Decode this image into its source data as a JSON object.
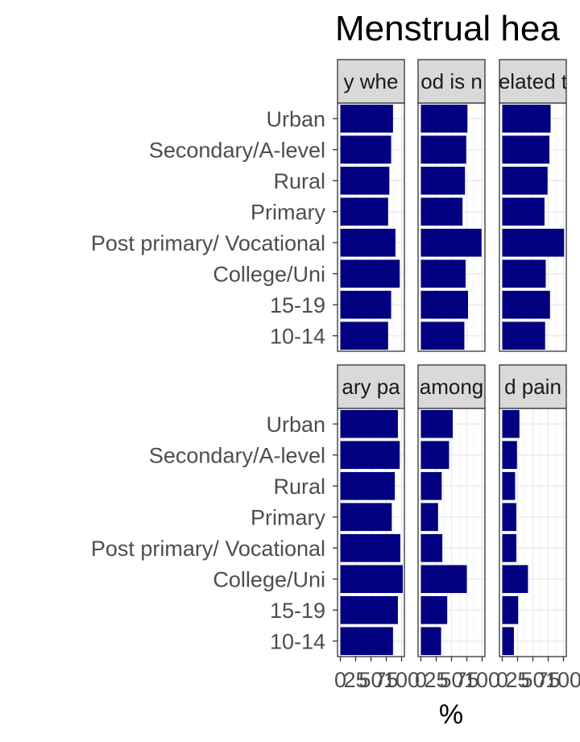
{
  "chart_data": {
    "type": "bar",
    "orientation": "horizontal",
    "title": "Menstrual hea",
    "xlabel": "%",
    "ylabel": "",
    "xlim": [
      0,
      100
    ],
    "x_ticks": [
      0,
      25,
      50,
      75,
      100
    ],
    "x_tick_labels": [
      "0",
      "25",
      "50",
      "75",
      "100"
    ],
    "categories": [
      "Urban",
      "Secondary/A-level",
      "Rural",
      "Primary",
      "Post primary/ Vocational",
      "College/Uni",
      "15-19",
      "10-14"
    ],
    "bar_color": "#000080",
    "grid": true,
    "legend": "none",
    "panels": [
      {
        "strip": "y whe",
        "values": [
          86,
          83,
          80,
          78,
          90,
          97,
          83,
          78
        ]
      },
      {
        "strip": "od is n",
        "values": [
          76,
          74,
          72,
          68,
          99,
          73,
          77,
          71
        ]
      },
      {
        "strip": "elated t",
        "values": [
          79,
          77,
          74,
          69,
          101,
          71,
          78,
          70
        ]
      },
      {
        "strip": "ary pa",
        "values": [
          94,
          97,
          89,
          84,
          98,
          102,
          94,
          86
        ]
      },
      {
        "strip": "among",
        "values": [
          52,
          46,
          34,
          28,
          35,
          75,
          43,
          33
        ]
      },
      {
        "strip": "d pain",
        "values": [
          28,
          24,
          21,
          23,
          23,
          42,
          26,
          19
        ]
      }
    ]
  }
}
